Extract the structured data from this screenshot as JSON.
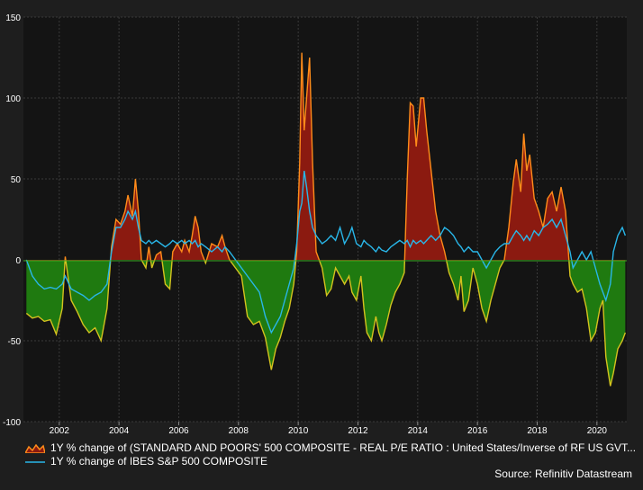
{
  "chart_data": {
    "type": "area",
    "title": "",
    "xlabel": "",
    "ylabel": "",
    "xlim": [
      2000.8,
      2021.0
    ],
    "ylim": [
      -100,
      150
    ],
    "yticks": [
      -100,
      -50,
      0,
      50,
      100,
      150
    ],
    "xticks": [
      2002,
      2004,
      2006,
      2008,
      2010,
      2012,
      2014,
      2016,
      2018,
      2020
    ],
    "grid": true,
    "legend_position": "bottom",
    "colors": {
      "positive_fill": "#8b1a10",
      "negative_fill": "#1f7a10",
      "series1_line_up": "#ff8c1a",
      "series1_line_down": "#d4c21e",
      "series2_line": "#29b6e8",
      "background": "#1e1e1e",
      "plot_background": "#141414"
    },
    "series": [
      {
        "name": "1Y % change of (STANDARD AND POORS' 500 COMPOSITE - REAL P/E RATIO : United States/Inverse of RF US GVT...",
        "points": [
          [
            2000.9,
            -33
          ],
          [
            2001.1,
            -36
          ],
          [
            2001.3,
            -35
          ],
          [
            2001.5,
            -38
          ],
          [
            2001.7,
            -37
          ],
          [
            2001.9,
            -46
          ],
          [
            2002.1,
            -30
          ],
          [
            2002.2,
            2
          ],
          [
            2002.4,
            -25
          ],
          [
            2002.6,
            -32
          ],
          [
            2002.8,
            -40
          ],
          [
            2003.0,
            -45
          ],
          [
            2003.2,
            -42
          ],
          [
            2003.4,
            -50
          ],
          [
            2003.6,
            -30
          ],
          [
            2003.75,
            8
          ],
          [
            2003.9,
            25
          ],
          [
            2004.05,
            22
          ],
          [
            2004.2,
            30
          ],
          [
            2004.3,
            40
          ],
          [
            2004.45,
            27
          ],
          [
            2004.55,
            50
          ],
          [
            2004.65,
            30
          ],
          [
            2004.75,
            0
          ],
          [
            2004.9,
            -5
          ],
          [
            2005.0,
            8
          ],
          [
            2005.1,
            -5
          ],
          [
            2005.25,
            3
          ],
          [
            2005.4,
            5
          ],
          [
            2005.55,
            -15
          ],
          [
            2005.7,
            -18
          ],
          [
            2005.8,
            5
          ],
          [
            2005.95,
            10
          ],
          [
            2006.1,
            5
          ],
          [
            2006.2,
            12
          ],
          [
            2006.35,
            5
          ],
          [
            2006.45,
            15
          ],
          [
            2006.55,
            27
          ],
          [
            2006.65,
            20
          ],
          [
            2006.75,
            5
          ],
          [
            2006.9,
            -2
          ],
          [
            2007.1,
            10
          ],
          [
            2007.3,
            8
          ],
          [
            2007.45,
            15
          ],
          [
            2007.55,
            8
          ],
          [
            2007.7,
            0
          ],
          [
            2007.9,
            -5
          ],
          [
            2008.1,
            -10
          ],
          [
            2008.3,
            -35
          ],
          [
            2008.5,
            -40
          ],
          [
            2008.7,
            -38
          ],
          [
            2008.9,
            -48
          ],
          [
            2009.1,
            -68
          ],
          [
            2009.25,
            -55
          ],
          [
            2009.4,
            -48
          ],
          [
            2009.55,
            -38
          ],
          [
            2009.7,
            -30
          ],
          [
            2009.85,
            -15
          ],
          [
            2009.95,
            5
          ],
          [
            2010.05,
            60
          ],
          [
            2010.12,
            128
          ],
          [
            2010.2,
            80
          ],
          [
            2010.28,
            100
          ],
          [
            2010.38,
            125
          ],
          [
            2010.48,
            60
          ],
          [
            2010.6,
            5
          ],
          [
            2010.8,
            -5
          ],
          [
            2010.95,
            -22
          ],
          [
            2011.1,
            -18
          ],
          [
            2011.25,
            -5
          ],
          [
            2011.4,
            -10
          ],
          [
            2011.55,
            -15
          ],
          [
            2011.7,
            -10
          ],
          [
            2011.8,
            -20
          ],
          [
            2011.95,
            -25
          ],
          [
            2012.1,
            -10
          ],
          [
            2012.2,
            -30
          ],
          [
            2012.3,
            -45
          ],
          [
            2012.45,
            -50
          ],
          [
            2012.6,
            -35
          ],
          [
            2012.7,
            -45
          ],
          [
            2012.8,
            -50
          ],
          [
            2012.95,
            -40
          ],
          [
            2013.1,
            -28
          ],
          [
            2013.25,
            -20
          ],
          [
            2013.4,
            -15
          ],
          [
            2013.55,
            -8
          ],
          [
            2013.65,
            50
          ],
          [
            2013.75,
            97
          ],
          [
            2013.85,
            95
          ],
          [
            2013.95,
            70
          ],
          [
            2014.1,
            100
          ],
          [
            2014.2,
            100
          ],
          [
            2014.3,
            80
          ],
          [
            2014.45,
            55
          ],
          [
            2014.6,
            30
          ],
          [
            2014.75,
            15
          ],
          [
            2014.9,
            5
          ],
          [
            2015.05,
            -8
          ],
          [
            2015.2,
            -15
          ],
          [
            2015.35,
            -25
          ],
          [
            2015.45,
            -10
          ],
          [
            2015.55,
            -32
          ],
          [
            2015.7,
            -25
          ],
          [
            2015.85,
            -5
          ],
          [
            2016.0,
            -15
          ],
          [
            2016.15,
            -30
          ],
          [
            2016.3,
            -38
          ],
          [
            2016.45,
            -25
          ],
          [
            2016.6,
            -15
          ],
          [
            2016.75,
            -5
          ],
          [
            2016.9,
            0
          ],
          [
            2017.05,
            20
          ],
          [
            2017.2,
            48
          ],
          [
            2017.3,
            62
          ],
          [
            2017.45,
            42
          ],
          [
            2017.55,
            78
          ],
          [
            2017.65,
            55
          ],
          [
            2017.75,
            65
          ],
          [
            2017.9,
            38
          ],
          [
            2018.05,
            30
          ],
          [
            2018.2,
            20
          ],
          [
            2018.35,
            38
          ],
          [
            2018.5,
            42
          ],
          [
            2018.65,
            30
          ],
          [
            2018.8,
            45
          ],
          [
            2018.95,
            30
          ],
          [
            2019.1,
            -10
          ],
          [
            2019.2,
            -15
          ],
          [
            2019.35,
            -20
          ],
          [
            2019.5,
            -18
          ],
          [
            2019.65,
            -30
          ],
          [
            2019.8,
            -50
          ],
          [
            2019.95,
            -45
          ],
          [
            2020.1,
            -30
          ],
          [
            2020.2,
            -25
          ],
          [
            2020.3,
            -60
          ],
          [
            2020.45,
            -78
          ],
          [
            2020.55,
            -70
          ],
          [
            2020.7,
            -55
          ],
          [
            2020.85,
            -50
          ],
          [
            2020.95,
            -45
          ]
        ]
      },
      {
        "name": "1Y % change of IBES S&P 500 COMPOSITE",
        "points": [
          [
            2000.9,
            0
          ],
          [
            2001.1,
            -10
          ],
          [
            2001.3,
            -15
          ],
          [
            2001.5,
            -18
          ],
          [
            2001.7,
            -17
          ],
          [
            2001.9,
            -18
          ],
          [
            2002.1,
            -15
          ],
          [
            2002.2,
            -10
          ],
          [
            2002.4,
            -18
          ],
          [
            2002.6,
            -20
          ],
          [
            2002.8,
            -22
          ],
          [
            2003.0,
            -25
          ],
          [
            2003.2,
            -22
          ],
          [
            2003.4,
            -20
          ],
          [
            2003.6,
            -15
          ],
          [
            2003.75,
            5
          ],
          [
            2003.9,
            20
          ],
          [
            2004.05,
            20
          ],
          [
            2004.2,
            25
          ],
          [
            2004.3,
            30
          ],
          [
            2004.45,
            25
          ],
          [
            2004.55,
            30
          ],
          [
            2004.65,
            20
          ],
          [
            2004.75,
            12
          ],
          [
            2004.9,
            10
          ],
          [
            2005.0,
            12
          ],
          [
            2005.1,
            10
          ],
          [
            2005.25,
            12
          ],
          [
            2005.4,
            10
          ],
          [
            2005.55,
            8
          ],
          [
            2005.7,
            10
          ],
          [
            2005.8,
            12
          ],
          [
            2005.95,
            10
          ],
          [
            2006.1,
            12
          ],
          [
            2006.2,
            10
          ],
          [
            2006.35,
            12
          ],
          [
            2006.45,
            10
          ],
          [
            2006.55,
            12
          ],
          [
            2006.65,
            8
          ],
          [
            2006.75,
            10
          ],
          [
            2006.9,
            8
          ],
          [
            2007.1,
            5
          ],
          [
            2007.3,
            8
          ],
          [
            2007.45,
            5
          ],
          [
            2007.55,
            8
          ],
          [
            2007.7,
            5
          ],
          [
            2007.9,
            0
          ],
          [
            2008.1,
            -5
          ],
          [
            2008.3,
            -10
          ],
          [
            2008.5,
            -15
          ],
          [
            2008.7,
            -20
          ],
          [
            2008.9,
            -35
          ],
          [
            2009.1,
            -45
          ],
          [
            2009.25,
            -40
          ],
          [
            2009.4,
            -35
          ],
          [
            2009.55,
            -25
          ],
          [
            2009.7,
            -15
          ],
          [
            2009.85,
            -5
          ],
          [
            2009.95,
            10
          ],
          [
            2010.05,
            30
          ],
          [
            2010.12,
            35
          ],
          [
            2010.2,
            55
          ],
          [
            2010.28,
            45
          ],
          [
            2010.38,
            30
          ],
          [
            2010.48,
            20
          ],
          [
            2010.6,
            15
          ],
          [
            2010.8,
            10
          ],
          [
            2010.95,
            12
          ],
          [
            2011.1,
            15
          ],
          [
            2011.25,
            12
          ],
          [
            2011.4,
            20
          ],
          [
            2011.55,
            10
          ],
          [
            2011.7,
            15
          ],
          [
            2011.8,
            20
          ],
          [
            2011.95,
            10
          ],
          [
            2012.1,
            8
          ],
          [
            2012.2,
            12
          ],
          [
            2012.3,
            10
          ],
          [
            2012.45,
            8
          ],
          [
            2012.6,
            5
          ],
          [
            2012.7,
            8
          ],
          [
            2012.8,
            6
          ],
          [
            2012.95,
            5
          ],
          [
            2013.1,
            8
          ],
          [
            2013.25,
            10
          ],
          [
            2013.4,
            12
          ],
          [
            2013.55,
            10
          ],
          [
            2013.65,
            12
          ],
          [
            2013.75,
            8
          ],
          [
            2013.85,
            12
          ],
          [
            2013.95,
            10
          ],
          [
            2014.1,
            12
          ],
          [
            2014.2,
            10
          ],
          [
            2014.3,
            12
          ],
          [
            2014.45,
            15
          ],
          [
            2014.6,
            12
          ],
          [
            2014.75,
            15
          ],
          [
            2014.9,
            20
          ],
          [
            2015.05,
            18
          ],
          [
            2015.2,
            15
          ],
          [
            2015.35,
            10
          ],
          [
            2015.45,
            8
          ],
          [
            2015.55,
            5
          ],
          [
            2015.7,
            8
          ],
          [
            2015.85,
            5
          ],
          [
            2016.0,
            5
          ],
          [
            2016.15,
            0
          ],
          [
            2016.3,
            -5
          ],
          [
            2016.45,
            0
          ],
          [
            2016.6,
            5
          ],
          [
            2016.75,
            8
          ],
          [
            2016.9,
            10
          ],
          [
            2017.05,
            10
          ],
          [
            2017.2,
            15
          ],
          [
            2017.3,
            18
          ],
          [
            2017.45,
            15
          ],
          [
            2017.55,
            12
          ],
          [
            2017.65,
            15
          ],
          [
            2017.75,
            12
          ],
          [
            2017.9,
            18
          ],
          [
            2018.05,
            15
          ],
          [
            2018.2,
            20
          ],
          [
            2018.35,
            22
          ],
          [
            2018.5,
            25
          ],
          [
            2018.65,
            20
          ],
          [
            2018.8,
            25
          ],
          [
            2018.95,
            15
          ],
          [
            2019.1,
            5
          ],
          [
            2019.2,
            -5
          ],
          [
            2019.35,
            0
          ],
          [
            2019.5,
            5
          ],
          [
            2019.65,
            0
          ],
          [
            2019.8,
            5
          ],
          [
            2019.95,
            -5
          ],
          [
            2020.1,
            -15
          ],
          [
            2020.2,
            -20
          ],
          [
            2020.3,
            -25
          ],
          [
            2020.45,
            -15
          ],
          [
            2020.55,
            5
          ],
          [
            2020.7,
            15
          ],
          [
            2020.85,
            20
          ],
          [
            2020.95,
            15
          ]
        ]
      }
    ]
  },
  "source": "Source: Refinitiv Datastream"
}
